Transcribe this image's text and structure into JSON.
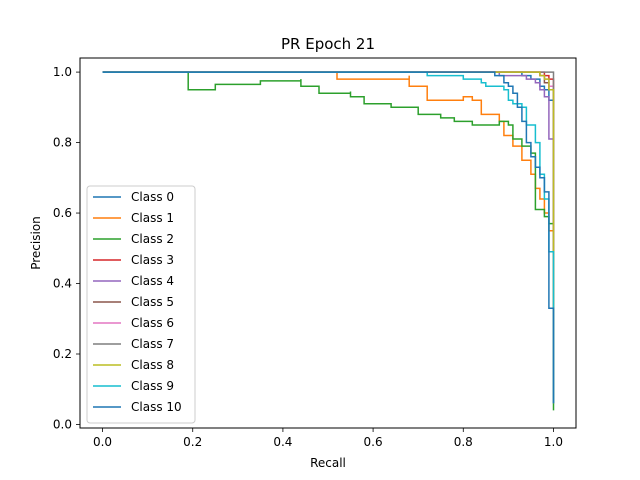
{
  "chart_data": {
    "type": "line",
    "title": "PR Epoch 21",
    "xlabel": "Recall",
    "ylabel": "Precision",
    "xlim": [
      -0.05,
      1.05
    ],
    "ylim": [
      -0.01,
      1.04
    ],
    "xticks": [
      0.0,
      0.2,
      0.4,
      0.6,
      0.8,
      1.0
    ],
    "xtick_labels": [
      "0.0",
      "0.2",
      "0.4",
      "0.6",
      "0.8",
      "1.0"
    ],
    "yticks": [
      0.0,
      0.2,
      0.4,
      0.6,
      0.8,
      1.0
    ],
    "ytick_labels": [
      "0.0",
      "0.2",
      "0.4",
      "0.6",
      "0.8",
      "1.0"
    ],
    "grid": false,
    "legend_position": "lower-left",
    "series": [
      {
        "name": "Class 0",
        "color": "#1f77b4",
        "points": [
          [
            0,
            1
          ],
          [
            0.9,
            1
          ],
          [
            0.93,
            0.99
          ],
          [
            0.95,
            0.98
          ],
          [
            0.97,
            0.96
          ],
          [
            0.98,
            0.95
          ],
          [
            0.99,
            0.92
          ],
          [
            1.0,
            0.88
          ],
          [
            1.0,
            0.06
          ]
        ]
      },
      {
        "name": "Class 1",
        "color": "#ff7f0e",
        "points": [
          [
            0,
            1
          ],
          [
            0.52,
            1
          ],
          [
            0.52,
            0.98
          ],
          [
            0.68,
            0.99
          ],
          [
            0.68,
            0.96
          ],
          [
            0.72,
            0.92
          ],
          [
            0.8,
            0.93
          ],
          [
            0.82,
            0.92
          ],
          [
            0.84,
            0.88
          ],
          [
            0.88,
            0.86
          ],
          [
            0.89,
            0.82
          ],
          [
            0.91,
            0.79
          ],
          [
            0.93,
            0.75
          ],
          [
            0.95,
            0.71
          ],
          [
            0.96,
            0.67
          ],
          [
            0.97,
            0.64
          ],
          [
            0.98,
            0.6
          ],
          [
            0.99,
            0.55
          ],
          [
            1.0,
            0.5
          ],
          [
            1.0,
            0.06
          ]
        ]
      },
      {
        "name": "Class 2",
        "color": "#2ca02c",
        "points": [
          [
            0,
            1
          ],
          [
            0.19,
            1
          ],
          [
            0.19,
            0.95
          ],
          [
            0.25,
            0.965
          ],
          [
            0.35,
            0.975
          ],
          [
            0.44,
            0.98
          ],
          [
            0.44,
            0.96
          ],
          [
            0.48,
            0.94
          ],
          [
            0.55,
            0.945
          ],
          [
            0.55,
            0.93
          ],
          [
            0.58,
            0.91
          ],
          [
            0.64,
            0.91
          ],
          [
            0.64,
            0.9
          ],
          [
            0.7,
            0.9
          ],
          [
            0.7,
            0.88
          ],
          [
            0.75,
            0.87
          ],
          [
            0.78,
            0.86
          ],
          [
            0.82,
            0.85
          ],
          [
            0.88,
            0.86
          ],
          [
            0.9,
            0.85
          ],
          [
            0.91,
            0.81
          ],
          [
            0.93,
            0.79
          ],
          [
            0.95,
            0.77
          ],
          [
            0.96,
            0.61
          ],
          [
            0.98,
            0.59
          ],
          [
            0.99,
            0.57
          ],
          [
            1.0,
            0.06
          ],
          [
            1.0,
            0.04
          ]
        ]
      },
      {
        "name": "Class 3",
        "color": "#d62728",
        "points": [
          [
            0,
            1
          ],
          [
            0.97,
            1
          ],
          [
            0.98,
            0.99
          ],
          [
            0.99,
            0.98
          ],
          [
            1.0,
            0.95
          ],
          [
            1.0,
            0.06
          ]
        ]
      },
      {
        "name": "Class 4",
        "color": "#9467bd",
        "points": [
          [
            0,
            1
          ],
          [
            0.86,
            1
          ],
          [
            0.88,
            0.99
          ],
          [
            0.92,
            0.99
          ],
          [
            0.94,
            0.98
          ],
          [
            0.96,
            0.97
          ],
          [
            0.97,
            0.95
          ],
          [
            0.98,
            0.93
          ],
          [
            0.99,
            0.9
          ],
          [
            0.99,
            0.81
          ],
          [
            1.0,
            0.78
          ],
          [
            1.0,
            0.06
          ]
        ]
      },
      {
        "name": "Class 5",
        "color": "#8c564b",
        "points": [
          [
            0,
            1
          ],
          [
            0.95,
            1
          ],
          [
            0.97,
            0.99
          ],
          [
            0.98,
            0.97
          ],
          [
            0.99,
            0.95
          ],
          [
            1.0,
            0.93
          ],
          [
            1.0,
            0.06
          ]
        ]
      },
      {
        "name": "Class 6",
        "color": "#e377c2",
        "points": [
          [
            0,
            1
          ],
          [
            0.96,
            1
          ],
          [
            0.97,
            0.99
          ],
          [
            0.98,
            0.98
          ],
          [
            0.99,
            0.96
          ],
          [
            1.0,
            0.94
          ],
          [
            1.0,
            0.06
          ]
        ]
      },
      {
        "name": "Class 7",
        "color": "#7f7f7f",
        "points": [
          [
            0,
            1
          ],
          [
            1.0,
            1
          ],
          [
            1.0,
            0.06
          ]
        ]
      },
      {
        "name": "Class 8",
        "color": "#bcbd22",
        "points": [
          [
            0,
            1
          ],
          [
            0.96,
            1
          ],
          [
            0.97,
            0.99
          ],
          [
            0.98,
            0.98
          ],
          [
            0.99,
            0.95
          ],
          [
            1.0,
            0.91
          ],
          [
            1.0,
            0.06
          ]
        ]
      },
      {
        "name": "Class 9",
        "color": "#17becf",
        "points": [
          [
            0,
            1
          ],
          [
            0.72,
            1
          ],
          [
            0.72,
            0.99
          ],
          [
            0.78,
            0.99
          ],
          [
            0.8,
            0.98
          ],
          [
            0.84,
            0.97
          ],
          [
            0.85,
            0.96
          ],
          [
            0.89,
            0.96
          ],
          [
            0.89,
            0.95
          ],
          [
            0.9,
            0.92
          ],
          [
            0.91,
            0.91
          ],
          [
            0.93,
            0.9
          ],
          [
            0.94,
            0.85
          ],
          [
            0.96,
            0.8
          ],
          [
            0.97,
            0.71
          ],
          [
            0.98,
            0.64
          ],
          [
            0.99,
            0.49
          ],
          [
            1.0,
            0.39
          ],
          [
            1.0,
            0.06
          ]
        ]
      },
      {
        "name": "Class 10",
        "color": "#1f77b4",
        "points": [
          [
            0,
            1
          ],
          [
            0.86,
            1
          ],
          [
            0.87,
            0.99
          ],
          [
            0.89,
            0.97
          ],
          [
            0.9,
            0.96
          ],
          [
            0.91,
            0.94
          ],
          [
            0.92,
            0.9
          ],
          [
            0.93,
            0.86
          ],
          [
            0.94,
            0.8
          ],
          [
            0.95,
            0.76
          ],
          [
            0.96,
            0.73
          ],
          [
            0.97,
            0.7
          ],
          [
            0.98,
            0.66
          ],
          [
            0.99,
            0.58
          ],
          [
            0.99,
            0.33
          ],
          [
            1.0,
            0.31
          ],
          [
            1.0,
            0.06
          ]
        ]
      }
    ]
  }
}
